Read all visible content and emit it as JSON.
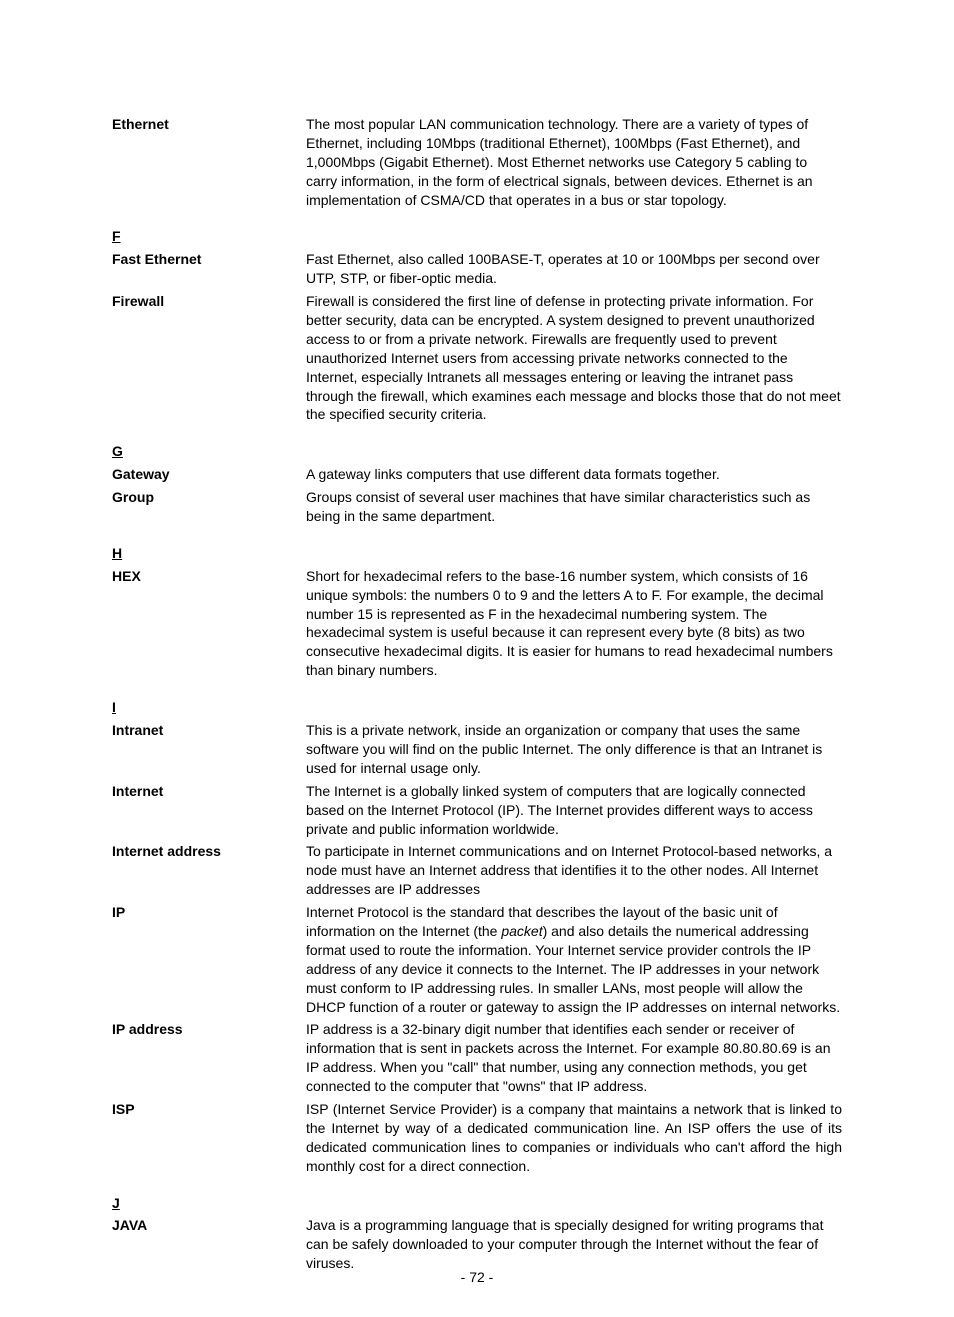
{
  "entries": [
    {
      "type": "row",
      "term": "Ethernet",
      "def": "The most popular LAN communication technology. There are a variety of types of Ethernet, including 10Mbps (traditional Ethernet), 100Mbps (Fast Ethernet), and 1,000Mbps (Gigabit Ethernet). Most Ethernet networks use Category 5 cabling to carry information, in the form of electrical signals, between devices. Ethernet is an implementation of CSMA/CD that operates in a bus or star topology."
    },
    {
      "type": "heading",
      "label": "F"
    },
    {
      "type": "row",
      "term": "Fast Ethernet",
      "def": "Fast Ethernet, also called 100BASE-T, operates at 10 or 100Mbps per second over UTP, STP, or fiber-optic media."
    },
    {
      "type": "row",
      "term": "Firewall",
      "def": "Firewall is considered the first line of defense in protecting private information. For better security, data can be encrypted. A system designed to prevent unauthorized access to or from a private network. Firewalls are frequently used to prevent unauthorized Internet users from accessing private networks connected to the Internet, especially Intranets all messages entering or leaving the intranet pass through the firewall, which examines each message and blocks those that do not meet the specified security criteria."
    },
    {
      "type": "heading",
      "label": "G"
    },
    {
      "type": "row",
      "term": "Gateway",
      "def": "A gateway links computers that use different data formats together."
    },
    {
      "type": "row",
      "term": "Group",
      "def": "Groups consist of several user machines that have similar characteristics such as being in the same department."
    },
    {
      "type": "heading",
      "label": "H"
    },
    {
      "type": "row",
      "term": "HEX",
      "def": "Short for hexadecimal refers to the base-16 number system, which consists of 16 unique symbols: the numbers 0 to 9 and the letters A to F. For example, the decimal number 15 is represented as F in the hexadecimal numbering system. The hexadecimal system is useful because it can represent every byte (8 bits) as two consecutive hexadecimal digits. It is easier for humans to read hexadecimal numbers than binary numbers."
    },
    {
      "type": "heading",
      "label": "I"
    },
    {
      "type": "row",
      "term": "Intranet",
      "def": "This is a private network, inside an organization or company that uses the same software you will find on the public Internet. The only difference is that an Intranet is used for internal usage only."
    },
    {
      "type": "row",
      "term": "Internet",
      "def": "The Internet is a globally linked system of computers that are logically connected based on the Internet Protocol (IP). The Internet provides different ways to access private and public information worldwide."
    },
    {
      "type": "row",
      "term": "Internet address",
      "def": "To participate in Internet communications and on Internet Protocol-based networks, a node must have an Internet address that identifies it to the other nodes. All Internet addresses are IP addresses"
    },
    {
      "type": "row",
      "term": "IP",
      "html": "Internet Protocol is the standard that describes the layout of the basic unit of information on the Internet (the <i>packet</i>) and also details the numerical addressing format used to route the information. Your Internet service provider controls the IP address of any device it connects to the Internet. The IP addresses in your network must conform to IP addressing rules. In smaller LANs, most people will allow the DHCP function of a router or gateway to assign the IP addresses on internal networks."
    },
    {
      "type": "row",
      "term": "IP address",
      "def": "IP address is a 32-binary digit number that identifies each sender or receiver of information that is sent in packets across the Internet. For example 80.80.80.69 is an IP address. When you \"call\" that number, using any connection methods, you get connected to the computer that \"owns\" that IP address."
    },
    {
      "type": "row",
      "term": "ISP",
      "justify": true,
      "def": "ISP (Internet Service Provider) is a company that maintains a network that is linked to the Internet by way of a dedicated communication line. An ISP offers the use of its dedicated communication lines to companies or individuals who can't afford the high monthly cost for a direct connection."
    },
    {
      "type": "heading",
      "label": "J"
    },
    {
      "type": "row",
      "term": "JAVA",
      "def": "Java is a programming language that is specially designed for writing programs that can be safely downloaded to your computer through the Internet without the fear of viruses."
    }
  ],
  "page_number": "- 72 -"
}
